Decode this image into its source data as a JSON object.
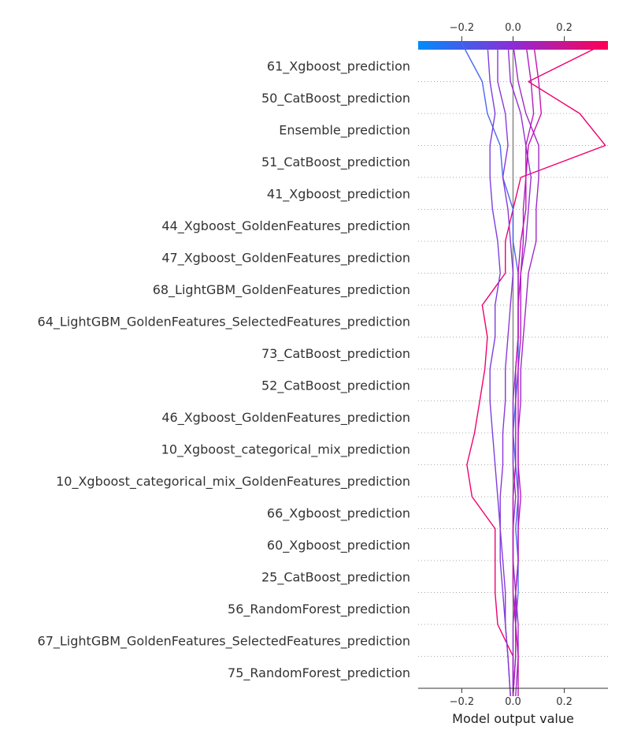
{
  "chart_data": {
    "type": "line",
    "title": "",
    "xlabel": "Model output value",
    "ylabel": "",
    "xlim": [
      -0.37,
      0.37
    ],
    "base_value": 0.0,
    "top_ticks": [
      {
        "value": -0.2,
        "label": "−0.2"
      },
      {
        "value": 0.0,
        "label": "0.0"
      },
      {
        "value": 0.2,
        "label": "0.2"
      }
    ],
    "bottom_ticks": [
      {
        "value": -0.2,
        "label": "−0.2"
      },
      {
        "value": 0.0,
        "label": "0.0"
      },
      {
        "value": 0.2,
        "label": "0.2"
      }
    ],
    "colormap": [
      "#008bfb",
      "#ff0052"
    ],
    "grid": "dotted horizontal",
    "legend": "top colorbar",
    "features": [
      "61_Xgboost_prediction",
      "50_CatBoost_prediction",
      "Ensemble_prediction",
      "51_CatBoost_prediction",
      "41_Xgboost_prediction",
      "44_Xgboost_GoldenFeatures_prediction",
      "47_Xgboost_GoldenFeatures_prediction",
      "68_LightGBM_GoldenFeatures_prediction",
      "64_LightGBM_GoldenFeatures_SelectedFeatures_prediction",
      "73_CatBoost_prediction",
      "52_CatBoost_prediction",
      "46_Xgboost_GoldenFeatures_prediction",
      "10_Xgboost_categorical_mix_prediction",
      "10_Xgboost_categorical_mix_GoldenFeatures_prediction",
      "66_Xgboost_prediction",
      "60_Xgboost_prediction",
      "25_CatBoost_prediction",
      "56_RandomForest_prediction",
      "67_LightGBM_GoldenFeatures_SelectedFeatures_prediction",
      "75_RandomForest_prediction"
    ],
    "series": [
      {
        "final": 0.36,
        "color": "#f00070",
        "values": [
          0.36,
          0.06,
          0.26,
          0.36,
          0.03,
          0.0,
          -0.03,
          -0.03,
          -0.12,
          -0.1,
          -0.11,
          -0.13,
          -0.15,
          -0.18,
          -0.16,
          -0.07,
          -0.07,
          -0.07,
          -0.06,
          0.0,
          0.0
        ]
      },
      {
        "final": -0.2,
        "color": "#4a68f0",
        "values": [
          -0.2,
          -0.12,
          -0.1,
          -0.05,
          -0.04,
          0.0,
          0.0,
          0.02,
          0.02,
          0.02,
          0.02,
          0.01,
          0.0,
          0.01,
          0.02,
          0.01,
          0.02,
          0.02,
          0.01,
          0.01,
          0.0
        ]
      },
      {
        "final": -0.1,
        "color": "#7d3edf",
        "values": [
          -0.1,
          -0.09,
          -0.07,
          -0.09,
          -0.09,
          -0.08,
          -0.06,
          -0.05,
          -0.07,
          -0.07,
          -0.09,
          -0.09,
          -0.08,
          -0.07,
          -0.06,
          -0.05,
          -0.05,
          -0.04,
          -0.03,
          -0.02,
          -0.01
        ]
      },
      {
        "final": -0.06,
        "color": "#8a38d8",
        "values": [
          -0.06,
          -0.06,
          -0.03,
          -0.02,
          -0.04,
          -0.02,
          -0.01,
          0.0,
          -0.01,
          -0.02,
          -0.03,
          -0.03,
          -0.04,
          -0.04,
          -0.05,
          -0.05,
          -0.04,
          -0.03,
          -0.03,
          -0.02,
          -0.01
        ]
      },
      {
        "final": -0.02,
        "color": "#9530d2",
        "values": [
          -0.02,
          -0.01,
          0.03,
          0.05,
          0.07,
          0.06,
          0.05,
          0.03,
          0.02,
          0.02,
          0.01,
          0.0,
          0.0,
          0.0,
          0.01,
          0.0,
          0.0,
          0.01,
          0.0,
          0.0,
          0.0
        ]
      },
      {
        "final": 0.0,
        "color": "#a028c8",
        "values": [
          0.0,
          0.02,
          0.05,
          0.1,
          0.1,
          0.09,
          0.09,
          0.06,
          0.05,
          0.04,
          0.03,
          0.03,
          0.02,
          0.02,
          0.02,
          0.02,
          0.02,
          0.01,
          0.02,
          0.02,
          0.01
        ]
      },
      {
        "final": 0.05,
        "color": "#b21cc0",
        "values": [
          0.05,
          0.07,
          0.08,
          0.05,
          0.05,
          0.04,
          0.04,
          0.03,
          0.03,
          0.03,
          0.02,
          0.02,
          0.02,
          0.02,
          0.03,
          0.02,
          0.02,
          0.01,
          0.01,
          0.01,
          0.0
        ]
      },
      {
        "final": 0.08,
        "color": "#c313b4",
        "values": [
          0.08,
          0.1,
          0.11,
          0.06,
          0.05,
          0.05,
          0.03,
          0.02,
          0.02,
          0.02,
          0.01,
          0.01,
          0.01,
          0.01,
          0.0,
          0.0,
          0.0,
          0.0,
          0.01,
          0.02,
          0.02
        ]
      }
    ]
  }
}
